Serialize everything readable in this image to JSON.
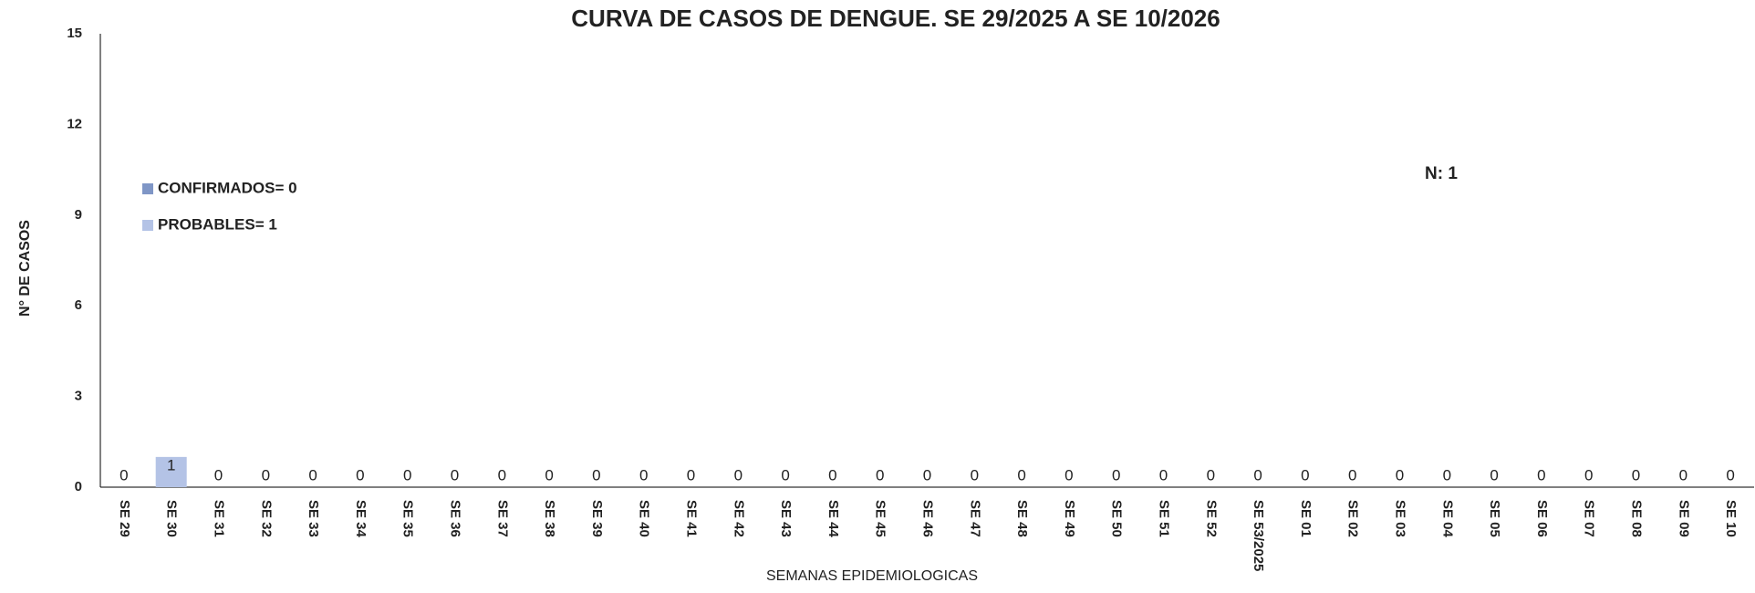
{
  "chart_data": {
    "type": "stacked_bar",
    "title": "CURVA DE CASOS DE DENGUE. SE 29/2025 A SE 10/2026",
    "x_label": "SEMANAS EPIDEMIOLOGICAS",
    "y_label": "N° DE CASOS",
    "annotation": "N: 1",
    "categories": [
      "SE 29",
      "SE 30",
      "SE 31",
      "SE 32",
      "SE 33",
      "SE 34",
      "SE 35",
      "SE 36",
      "SE 37",
      "SE 38",
      "SE 39",
      "SE 40",
      "SE 41",
      "SE 42",
      "SE 43",
      "SE 44",
      "SE 45",
      "SE 46",
      "SE 47",
      "SE 48",
      "SE 49",
      "SE 50",
      "SE 51",
      "SE 52",
      "SE 53/2025",
      "SE 01",
      "SE 02",
      "SE 03",
      "SE 04",
      "SE 05",
      "SE 06",
      "SE 07",
      "SE 08",
      "SE 09",
      "SE 10"
    ],
    "series": [
      {
        "name": "CONFIRMADOS= 0",
        "color": "#7f96c6",
        "values": [
          0,
          0,
          0,
          0,
          0,
          0,
          0,
          0,
          0,
          0,
          0,
          0,
          0,
          0,
          0,
          0,
          0,
          0,
          0,
          0,
          0,
          0,
          0,
          0,
          0,
          0,
          0,
          0,
          0,
          0,
          0,
          0,
          0,
          0,
          0
        ]
      },
      {
        "name": "PROBABLES= 1",
        "color": "#b4c3e6",
        "values": [
          0,
          1,
          0,
          0,
          0,
          0,
          0,
          0,
          0,
          0,
          0,
          0,
          0,
          0,
          0,
          0,
          0,
          0,
          0,
          0,
          0,
          0,
          0,
          0,
          0,
          0,
          0,
          0,
          0,
          0,
          0,
          0,
          0,
          0,
          0
        ]
      }
    ],
    "ylim": [
      0,
      15
    ],
    "yticks": [
      0,
      3,
      6,
      9,
      12,
      15
    ],
    "grid": false
  }
}
